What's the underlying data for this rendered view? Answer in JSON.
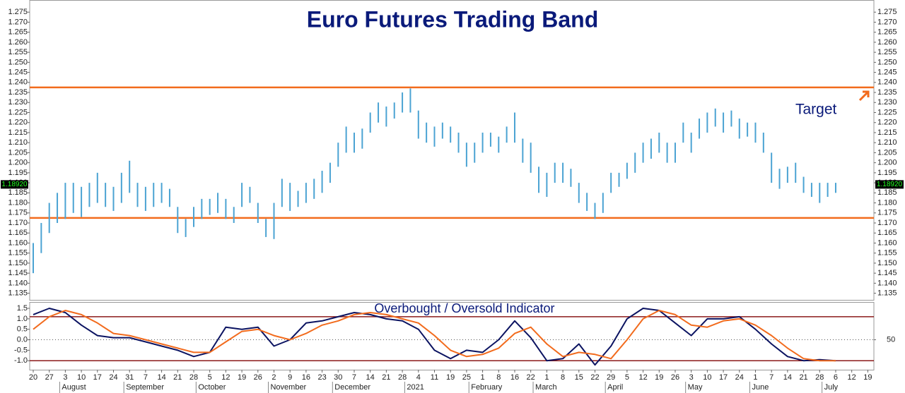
{
  "chart_data": [
    {
      "type": "bar_range",
      "title": "Euro Futures Trading Band",
      "annotation": "Target",
      "high": [
        1.16,
        1.17,
        1.18,
        1.185,
        1.19,
        1.19,
        1.188,
        1.19,
        1.195,
        1.19,
        1.188,
        1.195,
        1.201,
        1.19,
        1.188,
        1.19,
        1.19,
        1.187,
        1.178,
        1.172,
        1.178,
        1.182,
        1.182,
        1.185,
        1.182,
        1.178,
        1.19,
        1.188,
        1.18,
        1.172,
        1.18,
        1.192,
        1.19,
        1.186,
        1.19,
        1.192,
        1.196,
        1.2,
        1.21,
        1.218,
        1.215,
        1.217,
        1.225,
        1.23,
        1.228,
        1.23,
        1.235,
        1.237,
        1.226,
        1.22,
        1.218,
        1.22,
        1.218,
        1.215,
        1.21,
        1.21,
        1.215,
        1.215,
        1.213,
        1.218,
        1.225,
        1.212,
        1.21,
        1.198,
        1.195,
        1.2,
        1.2,
        1.197,
        1.19,
        1.185,
        1.18,
        1.185,
        1.195,
        1.195,
        1.2,
        1.205,
        1.21,
        1.212,
        1.215,
        1.21,
        1.21,
        1.22,
        1.215,
        1.222,
        1.225,
        1.227,
        1.225,
        1.226,
        1.222,
        1.22,
        1.22,
        1.215,
        1.205,
        1.197,
        1.198,
        1.2,
        1.193,
        1.19,
        1.19,
        1.19,
        1.19
      ],
      "low": [
        1.145,
        1.155,
        1.165,
        1.17,
        1.172,
        1.175,
        1.173,
        1.178,
        1.18,
        1.178,
        1.176,
        1.18,
        1.185,
        1.178,
        1.176,
        1.178,
        1.18,
        1.178,
        1.165,
        1.163,
        1.168,
        1.172,
        1.174,
        1.175,
        1.172,
        1.17,
        1.178,
        1.18,
        1.17,
        1.163,
        1.162,
        1.178,
        1.176,
        1.178,
        1.18,
        1.182,
        1.185,
        1.19,
        1.198,
        1.205,
        1.205,
        1.207,
        1.215,
        1.22,
        1.218,
        1.222,
        1.225,
        1.225,
        1.212,
        1.21,
        1.208,
        1.212,
        1.21,
        1.205,
        1.198,
        1.2,
        1.205,
        1.208,
        1.205,
        1.21,
        1.21,
        1.2,
        1.195,
        1.185,
        1.183,
        1.19,
        1.19,
        1.188,
        1.18,
        1.176,
        1.172,
        1.175,
        1.185,
        1.188,
        1.192,
        1.195,
        1.2,
        1.202,
        1.205,
        1.2,
        1.2,
        1.21,
        1.205,
        1.212,
        1.215,
        1.218,
        1.215,
        1.218,
        1.212,
        1.213,
        1.21,
        1.205,
        1.19,
        1.187,
        1.19,
        1.19,
        1.185,
        1.183,
        1.18,
        1.183,
        1.185
      ],
      "color": "#4ba3d3",
      "xlim": [
        -0.22,
        52.38
      ],
      "ylim": [
        1.1317,
        1.2807
      ],
      "yticks": [
        1.135,
        {
          "value": 1.14,
          "label": "1.140"
        },
        1.145,
        {
          "value": 1.15,
          "label": "1.150"
        },
        1.155,
        {
          "value": 1.16,
          "label": "1.160"
        },
        1.165,
        {
          "value": 1.17,
          "label": "1.170"
        },
        1.175,
        {
          "value": 1.18,
          "label": "1.180"
        },
        1.185,
        {
          "value": 1.19,
          "label": "1.190"
        },
        1.195,
        {
          "value": 1.2,
          "label": "1.200"
        },
        1.205,
        {
          "value": 1.21,
          "label": "1.210"
        },
        1.215,
        {
          "value": 1.22,
          "label": "1.220"
        },
        1.225,
        {
          "value": 1.23,
          "label": "1.230"
        },
        1.235,
        {
          "value": 1.24,
          "label": "1.240"
        },
        1.245,
        {
          "value": 1.25,
          "label": "1.250"
        },
        1.255,
        {
          "value": 1.26,
          "label": "1.260"
        },
        1.265,
        {
          "value": 1.27,
          "label": "1.270"
        },
        1.275
      ],
      "band_levels": [
        1.2375,
        1.1725
      ],
      "band_color": "#f26b1d",
      "last_price": {
        "value": 1.1892,
        "label": "1.18920"
      }
    },
    {
      "type": "line",
      "title": "Overbought / Oversold Indicator",
      "categories": [
        "20",
        "27",
        "3",
        "10",
        "17",
        "24",
        "31",
        "7",
        "14",
        "21",
        "28",
        "5",
        "12",
        "19",
        "26",
        "2",
        "9",
        "16",
        "23",
        "30",
        "7",
        "14",
        "21",
        "28",
        "4",
        "11",
        "19",
        "25",
        "1",
        "8",
        "16",
        "22",
        "1",
        "8",
        "15",
        "22",
        "29",
        "5",
        "12",
        "19",
        "26",
        "3",
        "10",
        "17",
        "24",
        "1",
        "7",
        "14",
        "21",
        "28",
        "6",
        "12",
        "19"
      ],
      "month_ticks": [
        {
          "value": 2,
          "label": "August"
        },
        {
          "value": 6,
          "label": "September"
        },
        {
          "value": 10.5,
          "label": "October"
        },
        {
          "value": 15,
          "label": "November"
        },
        {
          "value": 19,
          "label": "December"
        },
        {
          "value": 23.5,
          "label": "2021"
        },
        {
          "value": 27.5,
          "label": "February"
        },
        {
          "value": 31.5,
          "label": "March"
        },
        {
          "value": 36,
          "label": "April"
        },
        {
          "value": 41,
          "label": "May"
        },
        {
          "value": 45,
          "label": "June"
        },
        {
          "value": 49.5,
          "label": "July"
        }
      ],
      "series": [
        {
          "color": "#0b1361",
          "values": [
            1.2,
            1.5,
            1.3,
            0.7,
            0.2,
            0.1,
            0.1,
            -0.1,
            -0.3,
            -0.5,
            -0.8,
            -0.6,
            0.6,
            0.5,
            0.6,
            -0.3,
            0.0,
            0.8,
            0.9,
            1.1,
            1.3,
            1.2,
            1.0,
            0.9,
            0.5,
            -0.5,
            -0.9,
            -0.5,
            -0.6,
            0.0,
            0.9,
            0.1,
            -1.0,
            -0.9,
            -0.2,
            -1.2,
            -0.3,
            1.0,
            1.5,
            1.4,
            0.8,
            0.2,
            1.0,
            1.0,
            1.1,
            0.5,
            -0.2,
            -0.8,
            -1.0,
            -0.95,
            -1.0,
            null,
            null
          ]
        },
        {
          "color": "#f26b1d",
          "values": [
            0.5,
            1.1,
            1.4,
            1.2,
            0.8,
            0.3,
            0.2,
            0.0,
            -0.2,
            -0.4,
            -0.6,
            -0.6,
            -0.1,
            0.4,
            0.5,
            0.2,
            0.0,
            0.3,
            0.7,
            0.9,
            1.2,
            1.3,
            1.2,
            1.0,
            0.8,
            0.2,
            -0.5,
            -0.8,
            -0.7,
            -0.4,
            0.3,
            0.6,
            -0.2,
            -0.8,
            -0.6,
            -0.7,
            -0.9,
            0.0,
            1.0,
            1.4,
            1.2,
            0.7,
            0.6,
            0.9,
            1.0,
            0.7,
            0.2,
            -0.4,
            -0.9,
            -1.0,
            -1.0,
            null,
            null
          ]
        }
      ],
      "xlim": [
        -0.22,
        52.38
      ],
      "ylim": [
        -1.43,
        1.77
      ],
      "yticks": [
        {
          "value": -1,
          "label": "-1.0"
        },
        -0.5,
        {
          "value": 0,
          "label": "0.0"
        },
        0.5,
        {
          "value": 1,
          "label": "1.0"
        },
        1.5
      ],
      "y2ticks": [
        {
          "value": 0,
          "label": "50"
        }
      ],
      "levels": [
        1.1,
        -1.0
      ],
      "level_color": "#8b1a1a",
      "dotted_level": 0
    }
  ]
}
